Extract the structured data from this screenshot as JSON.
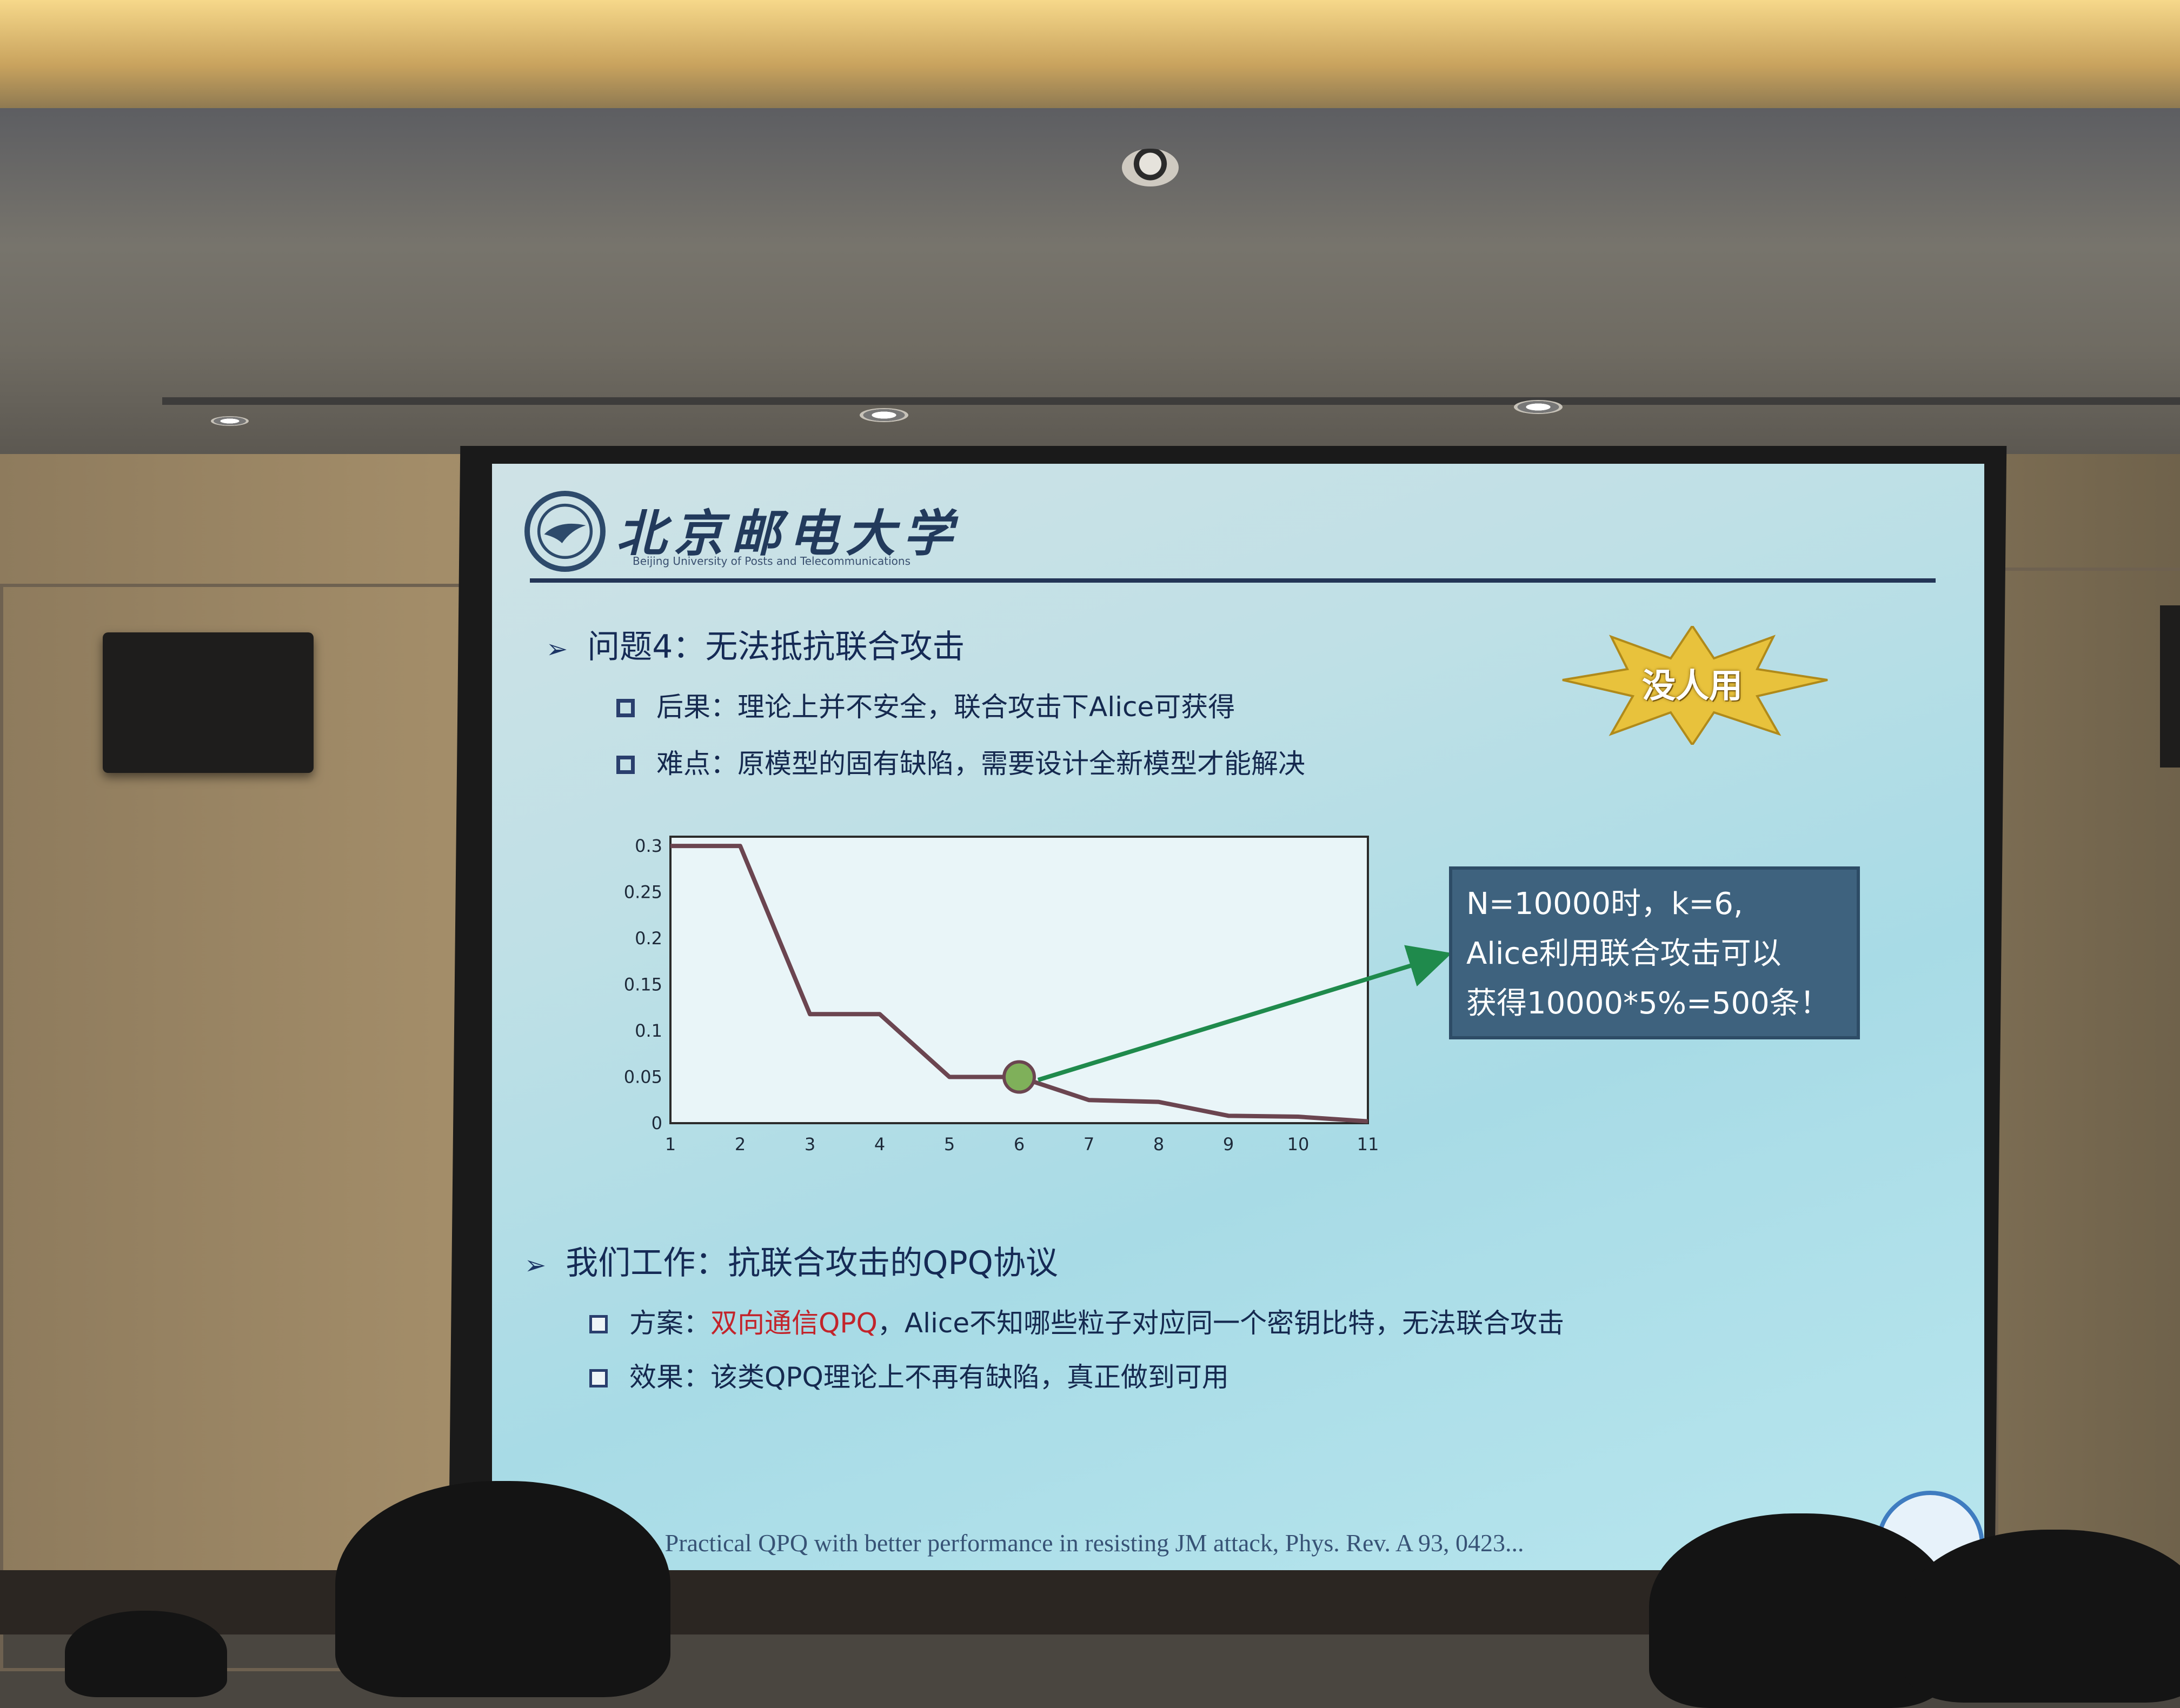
{
  "slide": {
    "logo": {
      "cn_name": "北京邮电大学",
      "en_name": "Beijing University of Posts and Telecommunications"
    },
    "problem": {
      "arrow": "➢",
      "title": "问题4：无法抵抗联合攻击",
      "consequence": "后果：理论上并不安全，联合攻击下Alice可获得",
      "difficulty": "难点：原模型的固有缺陷，需要设计全新模型才能解决"
    },
    "starburst": {
      "label": "没人用",
      "color": "#e8c23c"
    },
    "callout": {
      "line1": "N=10000时，k=6,",
      "line2": "Alice利用联合攻击可以",
      "line3": "获得10000*5%=500条！"
    },
    "work": {
      "arrow": "➢",
      "title": "我们工作：抗联合攻击的QPQ协议",
      "scheme_label": "方案：",
      "scheme_text": "双向通信QPQ",
      "scheme_rest": "，Alice不知哪些粒子对应同一个密钥比特，无法联合攻击",
      "effect": "效果：该类QPQ理论上不再有缺陷，真正做到可用"
    },
    "reference": "..i,   et al. Practical QPQ with better performance in resisting JM attack,  Phys. Rev. A 93, 0423..."
  },
  "chart_data": {
    "type": "line",
    "x": [
      1,
      2,
      3,
      4,
      5,
      6,
      7,
      8,
      9,
      10,
      11
    ],
    "series": [
      {
        "values": [
          0.3,
          0.3,
          0.118,
          0.118,
          0.05,
          0.05,
          0.025,
          0.023,
          0.008,
          0.007,
          0.002
        ],
        "color": "#6b4550"
      }
    ],
    "highlight_point": {
      "x": 6,
      "y": 0.05,
      "color": "#7fb05a"
    },
    "xticks": [
      "1",
      "2",
      "3",
      "4",
      "5",
      "6",
      "7",
      "8",
      "9",
      "10",
      "11"
    ],
    "yticks": [
      "0",
      "0.05",
      "0.1",
      "0.15",
      "0.2",
      "0.25",
      "0.3"
    ],
    "xlim": [
      1,
      11
    ],
    "ylim": [
      0,
      0.31
    ],
    "grid": true,
    "xlabel": "",
    "ylabel": ""
  },
  "colors": {
    "arrow": "#1f8a4c",
    "callout_bg": "#3e627e",
    "text_dark": "#152a55"
  }
}
